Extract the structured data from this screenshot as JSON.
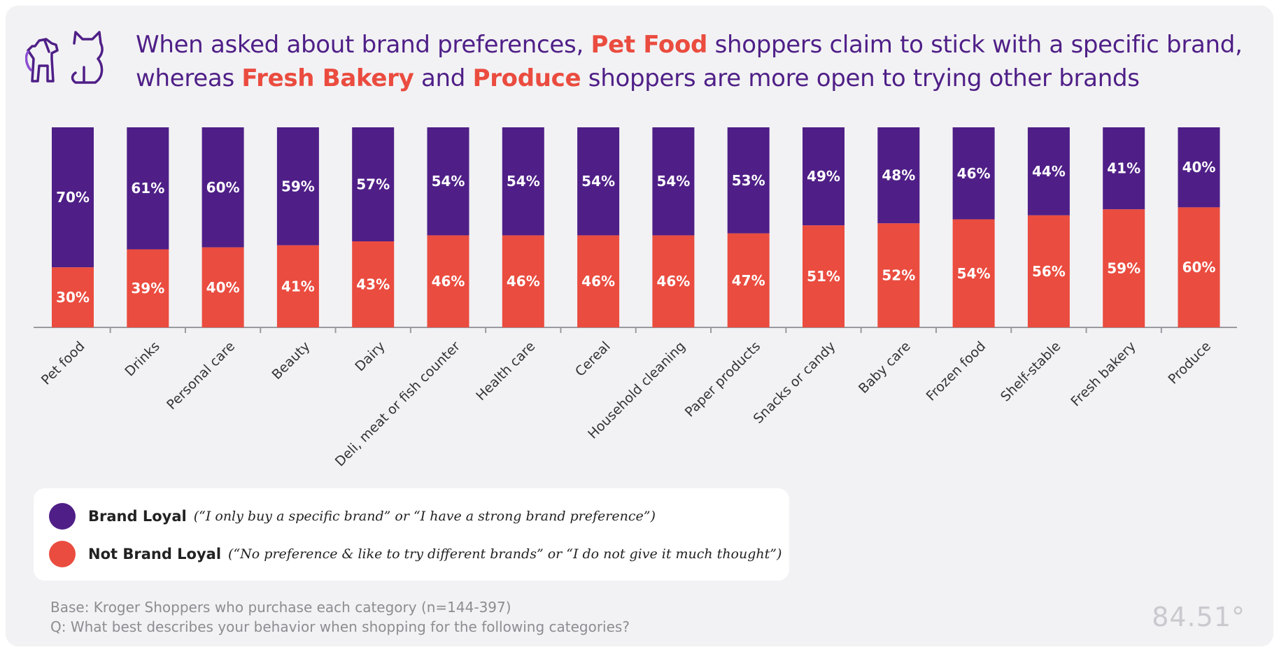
{
  "title": {
    "part1": "When asked about brand preferences, ",
    "hl1": "Pet Food",
    "part2": " shoppers claim to stick with a specific brand, whereas ",
    "hl2": "Fresh Bakery",
    "part3": " and ",
    "hl3": "Produce",
    "part4": " shoppers are more open to trying other brands"
  },
  "icons": {
    "pets": "dog-cat-icon"
  },
  "colors": {
    "loyal": "#4f1f87",
    "not_loyal": "#ea4c3f",
    "title": "#4f1f87",
    "highlight": "#ea4c3f"
  },
  "legend": {
    "loyal_label": "Brand Loyal",
    "loyal_desc": "(“I only buy a specific brand” or “I have a strong brand preference”)",
    "not_loyal_label": "Not Brand Loyal",
    "not_loyal_desc": "(“No preference & like to try different brands” or “I do not give it much thought”)"
  },
  "footnote": {
    "base": "Base: Kroger Shoppers who purchase each category (n=144-397)",
    "question": "Q: What best describes your behavior when shopping for the following categories?"
  },
  "logo": "84.51°",
  "chart_data": {
    "type": "bar",
    "stacked": true,
    "categories": [
      "Pet food",
      "Drinks",
      "Personal care",
      "Beauty",
      "Dairy",
      "Deli, meat or fish counter",
      "Health care",
      "Cereal",
      "Household cleaning",
      "Paper products",
      "Snacks or candy",
      "Baby care",
      "Frozen food",
      "Shelf-stable",
      "Fresh bakery",
      "Produce"
    ],
    "series": [
      {
        "name": "Not Brand Loyal",
        "color": "#ea4c3f",
        "values": [
          30,
          39,
          40,
          41,
          43,
          46,
          46,
          46,
          46,
          47,
          51,
          52,
          54,
          56,
          59,
          60
        ]
      },
      {
        "name": "Brand Loyal",
        "color": "#4f1f87",
        "values": [
          70,
          61,
          60,
          59,
          57,
          54,
          54,
          54,
          54,
          53,
          49,
          48,
          46,
          44,
          41,
          40
        ]
      }
    ],
    "value_suffix": "%",
    "legend_position": "bottom-left",
    "grid": false
  }
}
